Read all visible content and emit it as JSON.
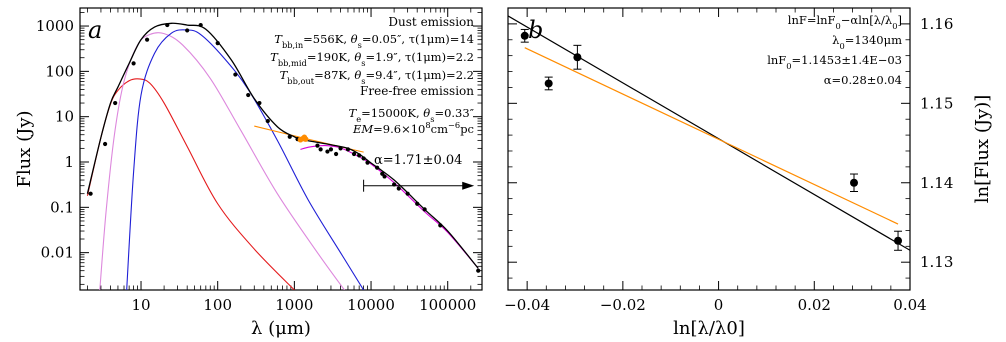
{
  "chart_data": [
    {
      "type": "line",
      "panel_label": "a",
      "xlabel": "λ (μm)",
      "ylabel": "Flux (Jy)",
      "xscale": "log",
      "yscale": "log",
      "xlim": [
        1.6,
        280000
      ],
      "ylim": [
        0.0015,
        2500
      ],
      "x_ticks": [
        {
          "v": 10,
          "t": "10"
        },
        {
          "v": 100,
          "t": "100"
        },
        {
          "v": 1000,
          "t": "1000"
        },
        {
          "v": 10000,
          "t": "10000"
        },
        {
          "v": 100000,
          "t": "100000"
        }
      ],
      "y_ticks": [
        {
          "v": 0.01,
          "t": "0.01"
        },
        {
          "v": 0.1,
          "t": "0.1"
        },
        {
          "v": 1,
          "t": "1"
        },
        {
          "v": 10,
          "t": "10"
        },
        {
          "v": 100,
          "t": "100"
        },
        {
          "v": 1000,
          "t": "1000"
        }
      ],
      "annotations": {
        "dust_title": "Dust emission",
        "ff_title": "Free-free emission",
        "alpha": "α=1.71±0.04"
      },
      "legend_lines": [
        {
          "id": "in",
          "color": "#e41a1c",
          "parts": [
            {
              "t": "T"
            },
            {
              "t": "bb,in",
              "sub": true
            },
            {
              "t": "=556K, "
            },
            {
              "t": "θ"
            },
            {
              "t": "s",
              "sub": true
            },
            {
              "t": "=0.05″, τ(1μm)=14"
            }
          ]
        },
        {
          "id": "mid",
          "color": "#dd88dd",
          "parts": [
            {
              "t": "T"
            },
            {
              "t": "bb,mid",
              "sub": true
            },
            {
              "t": "=190K, "
            },
            {
              "t": "θ"
            },
            {
              "t": "s",
              "sub": true
            },
            {
              "t": "=1.9″, τ(1μm)=2.2"
            }
          ]
        },
        {
          "id": "out",
          "color": "#1f1fd6",
          "parts": [
            {
              "t": "T"
            },
            {
              "t": "bb,out",
              "sub": true
            },
            {
              "t": "=87K, "
            },
            {
              "t": "θ"
            },
            {
              "t": "s",
              "sub": true
            },
            {
              "t": "=9.4″, τ(1μm)=2.2"
            }
          ]
        },
        {
          "id": "te",
          "color": "#d800d8",
          "parts": [
            {
              "t": "T"
            },
            {
              "t": "e",
              "sub": true
            },
            {
              "t": "=15000K, "
            },
            {
              "t": "θ"
            },
            {
              "t": "s",
              "sub": true
            },
            {
              "t": "=0.33″"
            }
          ]
        },
        {
          "id": "em",
          "color": "#d800d8",
          "parts": [
            {
              "t": "EM"
            },
            {
              "t": "=9.6×10"
            },
            {
              "t": "8",
              "sup": true
            },
            {
              "t": "cm"
            },
            {
              "t": "−6",
              "sup": true
            },
            {
              "t": "pc"
            }
          ]
        }
      ],
      "series": [
        {
          "color": "#e41a1c",
          "points": [
            [
              2,
              0.18
            ],
            [
              3,
              3.5
            ],
            [
              4,
              19
            ],
            [
              5,
              38
            ],
            [
              7,
              62
            ],
            [
              9.5,
              68
            ],
            [
              13,
              55
            ],
            [
              20,
              20
            ],
            [
              40,
              2.2
            ],
            [
              100,
              0.12
            ],
            [
              300,
              0.012
            ],
            [
              1000,
              0.0015
            ]
          ]
        },
        {
          "color": "#dd88dd",
          "points": [
            [
              2.9,
              0.0015
            ],
            [
              3.5,
              0.08
            ],
            [
              4.5,
              4
            ],
            [
              6,
              60
            ],
            [
              9,
              380
            ],
            [
              13,
              650
            ],
            [
              20,
              680
            ],
            [
              35,
              380
            ],
            [
              80,
              70
            ],
            [
              200,
              5
            ],
            [
              600,
              0.2
            ],
            [
              2000,
              0.01
            ],
            [
              4500,
              0.0015
            ]
          ]
        },
        {
          "color": "#1f1fd6",
          "points": [
            [
              6.5,
              0.0015
            ],
            [
              8,
              0.6
            ],
            [
              10,
              30
            ],
            [
              15,
              250
            ],
            [
              25,
              700
            ],
            [
              40,
              820
            ],
            [
              60,
              650
            ],
            [
              120,
              200
            ],
            [
              250,
              40
            ],
            [
              600,
              3
            ],
            [
              1500,
              0.15
            ],
            [
              4000,
              0.01
            ],
            [
              8000,
              0.0015
            ]
          ]
        },
        {
          "color": "#d800d8",
          "points": [
            [
              1200,
              1.9
            ],
            [
              1600,
              2.15
            ],
            [
              2500,
              2.3
            ],
            [
              4000,
              2.05
            ],
            [
              7000,
              1.3
            ],
            [
              10000,
              0.9
            ],
            [
              20000,
              0.35
            ],
            [
              50000,
              0.08
            ],
            [
              100000,
              0.028
            ],
            [
              250000,
              0.0045
            ]
          ]
        },
        {
          "color": "#ff8c00",
          "points": [
            [
              300,
              6.2
            ],
            [
              1500,
              3.2
            ],
            [
              8000,
              1.65
            ]
          ]
        },
        {
          "color": "#000000",
          "points": [
            [
              2,
              0.2
            ],
            [
              3,
              3.5
            ],
            [
              4,
              20
            ],
            [
              5,
              45
            ],
            [
              7,
              150
            ],
            [
              10,
              500
            ],
            [
              15,
              950
            ],
            [
              25,
              1150
            ],
            [
              40,
              1050
            ],
            [
              70,
              850
            ],
            [
              150,
              180
            ],
            [
              300,
              25
            ],
            [
              600,
              6
            ],
            [
              1000,
              3.6
            ],
            [
              1300,
              3.1
            ],
            [
              3000,
              2.4
            ],
            [
              5000,
              2.0
            ],
            [
              7000,
              1.5
            ],
            [
              10000,
              0.95
            ],
            [
              20000,
              0.4
            ],
            [
              50000,
              0.09
            ],
            [
              100000,
              0.03
            ],
            [
              250000,
              0.0045
            ]
          ]
        }
      ],
      "observations": [
        [
          2.2,
          0.2
        ],
        [
          3.4,
          2.5
        ],
        [
          4.6,
          20
        ],
        [
          8,
          150
        ],
        [
          12,
          500
        ],
        [
          22,
          1050
        ],
        [
          40,
          800
        ],
        [
          60,
          1050
        ],
        [
          100,
          420
        ],
        [
          170,
          85
        ],
        [
          250,
          30
        ],
        [
          350,
          20
        ],
        [
          450,
          8
        ],
        [
          870,
          3.6
        ],
        [
          1100,
          3.2
        ],
        [
          1200,
          3.1
        ],
        [
          1300,
          3.3
        ],
        [
          1350,
          3.5
        ],
        [
          1400,
          3.2
        ],
        [
          2000,
          2.3
        ],
        [
          2200,
          1.9
        ],
        [
          2700,
          1.7
        ],
        [
          3000,
          1.9
        ],
        [
          3500,
          1.5
        ],
        [
          4000,
          2
        ],
        [
          5000,
          1.9
        ],
        [
          6000,
          1.5
        ],
        [
          7000,
          1.4
        ],
        [
          8000,
          1.2
        ],
        [
          9000,
          0.97
        ],
        [
          12000,
          0.75
        ],
        [
          14000,
          0.55
        ],
        [
          15000,
          0.48
        ],
        [
          20000,
          0.32
        ],
        [
          23000,
          0.26
        ],
        [
          30000,
          0.2
        ],
        [
          40000,
          0.12
        ],
        [
          50000,
          0.09
        ],
        [
          80000,
          0.04
        ],
        [
          250000,
          0.004
        ]
      ],
      "arrow": {
        "from": [
          8000,
          0.3
        ],
        "to": [
          250000,
          0.3
        ]
      }
    },
    {
      "type": "scatter",
      "panel_label": "b",
      "xlabel": "ln[λ/λ0]",
      "ylabel": "ln[Flux (Jy)]",
      "xlim": [
        -0.044,
        0.04
      ],
      "ylim": [
        1.1265,
        1.162
      ],
      "x_ticks": [
        {
          "v": -0.04,
          "t": "−0.04"
        },
        {
          "v": -0.02,
          "t": "−0.02"
        },
        {
          "v": 0,
          "t": "0"
        },
        {
          "v": 0.02,
          "t": "0.02"
        },
        {
          "v": 0.04,
          "t": "0.04"
        }
      ],
      "y_ticks": [
        {
          "v": 1.13,
          "t": "1.13"
        },
        {
          "v": 1.14,
          "t": "1.14"
        },
        {
          "v": 1.15,
          "t": "1.15"
        },
        {
          "v": 1.16,
          "t": "1.16"
        }
      ],
      "legend_lines": [
        {
          "parts": [
            {
              "t": "lnF=lnF"
            },
            {
              "t": "0",
              "sub": true
            },
            {
              "t": "−αln[λ/λ"
            },
            {
              "t": "0",
              "sub": true
            },
            {
              "t": "]"
            }
          ]
        },
        {
          "parts": [
            {
              "t": "λ"
            },
            {
              "t": "0",
              "sub": true
            },
            {
              "t": "=1340μm"
            }
          ]
        },
        {
          "parts": [
            {
              "t": "lnF"
            },
            {
              "t": "0",
              "sub": true
            },
            {
              "t": "=1.1453±1.4E−03"
            }
          ]
        },
        {
          "parts": [
            {
              "t": "α=0.28±0.04"
            }
          ]
        }
      ],
      "points": [
        {
          "x": -0.0405,
          "y": 1.1585,
          "err": 0.0008
        },
        {
          "x": -0.0355,
          "y": 1.1525,
          "err": 0.0008
        },
        {
          "x": -0.0295,
          "y": 1.1558,
          "err": 0.0015
        },
        {
          "x": 0.0283,
          "y": 1.14,
          "err": 0.0011
        },
        {
          "x": 0.0375,
          "y": 1.1327,
          "err": 0.0012
        }
      ],
      "fit_lines": [
        {
          "color": "#000000",
          "from": [
            -0.044,
            1.161
          ],
          "to": [
            0.04,
            1.1315
          ]
        },
        {
          "color": "#ff8c00",
          "from": [
            -0.0405,
            1.157
          ],
          "to": [
            0.0375,
            1.1348
          ]
        }
      ]
    }
  ]
}
